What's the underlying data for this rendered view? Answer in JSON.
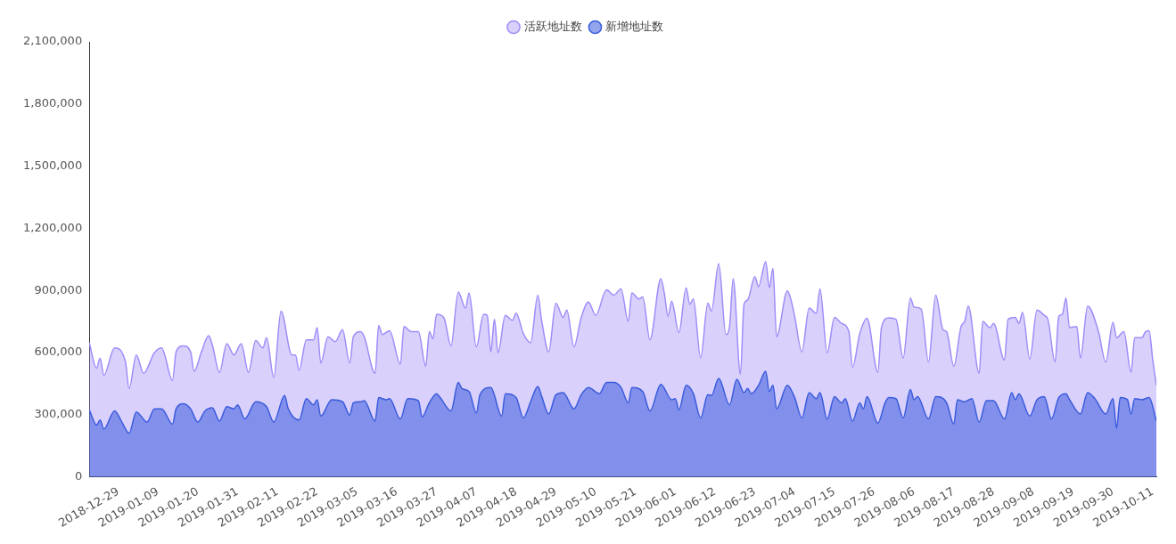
{
  "chart_data": {
    "type": "area",
    "legend": "top",
    "marker": "none",
    "xlim": [
      "2018-12-21",
      "2019-10-12"
    ],
    "ylim": [
      0,
      2100000
    ],
    "yticks": [
      0,
      {
        "value": 300000,
        "label": "300,000"
      },
      {
        "value": 600000,
        "label": "600,000"
      },
      {
        "value": 900000,
        "label": "900,000"
      },
      {
        "value": 1200000,
        "label": "1,200,000"
      },
      {
        "value": 1500000,
        "label": "1,500,000"
      },
      {
        "value": 1800000,
        "label": "1,800,000"
      },
      {
        "value": 2100000,
        "label": "2,100,000"
      }
    ],
    "xticks": [
      "2018-12-29",
      "2019-01-09",
      "2019-01-20",
      "2019-01-31",
      "2019-02-11",
      "2019-02-22",
      "2019-03-05",
      "2019-03-16",
      "2019-03-27",
      "2019-04-07",
      "2019-04-18",
      "2019-04-29",
      "2019-05-10",
      "2019-05-21",
      "2019-06-01",
      "2019-06-12",
      "2019-06-23",
      "2019-07-04",
      "2019-07-15",
      "2019-07-26",
      "2019-08-06",
      "2019-08-17",
      "2019-08-28",
      "2019-09-08",
      "2019-09-19",
      "2019-09-30",
      "2019-10-11"
    ],
    "series": [
      {
        "name": "活跃地址数",
        "color": "#a08cf8",
        "x": [
          "2018-12-21",
          "2018-12-23",
          "2018-12-24",
          "2018-12-25",
          "2018-12-28",
          "2018-12-31",
          "2019-01-01",
          "2019-01-03",
          "2019-01-05",
          "2019-01-08",
          "2019-01-10",
          "2019-01-13",
          "2019-01-14",
          "2019-01-16",
          "2019-01-18",
          "2019-01-19",
          "2019-01-21",
          "2019-01-23",
          "2019-01-24",
          "2019-01-26",
          "2019-01-28",
          "2019-01-30",
          "2019-02-01",
          "2019-02-03",
          "2019-02-05",
          "2019-02-07",
          "2019-02-08",
          "2019-02-10",
          "2019-02-12",
          "2019-02-15",
          "2019-02-16",
          "2019-02-17",
          "2019-02-19",
          "2019-02-21",
          "2019-02-22",
          "2019-02-23",
          "2019-02-25",
          "2019-02-27",
          "2019-03-01",
          "2019-03-03",
          "2019-03-04",
          "2019-03-06",
          "2019-03-07",
          "2019-03-10",
          "2019-03-11",
          "2019-03-12",
          "2019-03-14",
          "2019-03-17",
          "2019-03-18",
          "2019-03-20",
          "2019-03-22",
          "2019-03-24",
          "2019-03-25",
          "2019-03-26",
          "2019-03-27",
          "2019-03-29",
          "2019-03-31",
          "2019-04-02",
          "2019-04-04",
          "2019-04-05",
          "2019-04-07",
          "2019-04-09",
          "2019-04-10",
          "2019-04-11",
          "2019-04-12",
          "2019-04-13",
          "2019-04-15",
          "2019-04-17",
          "2019-04-18",
          "2019-04-20",
          "2019-04-22",
          "2019-04-24",
          "2019-04-25",
          "2019-04-27",
          "2019-04-29",
          "2019-05-01",
          "2019-05-02",
          "2019-05-04",
          "2019-05-06",
          "2019-05-08",
          "2019-05-10",
          "2019-05-13",
          "2019-05-15",
          "2019-05-17",
          "2019-05-19",
          "2019-05-20",
          "2019-05-22",
          "2019-05-23",
          "2019-05-25",
          "2019-05-28",
          "2019-05-29",
          "2019-05-30",
          "2019-05-31",
          "2019-06-02",
          "2019-06-04",
          "2019-06-05",
          "2019-06-06",
          "2019-06-08",
          "2019-06-10",
          "2019-06-11",
          "2019-06-13",
          "2019-06-15",
          "2019-06-16",
          "2019-06-17",
          "2019-06-19",
          "2019-06-20",
          "2019-06-21",
          "2019-06-23",
          "2019-06-24",
          "2019-06-26",
          "2019-06-27",
          "2019-06-28",
          "2019-06-29",
          "2019-07-02",
          "2019-07-03",
          "2019-07-04",
          "2019-07-06",
          "2019-07-08",
          "2019-07-10",
          "2019-07-11",
          "2019-07-13",
          "2019-07-15",
          "2019-07-17",
          "2019-07-19",
          "2019-07-20",
          "2019-07-22",
          "2019-07-24",
          "2019-07-27",
          "2019-07-28",
          "2019-07-30",
          "2019-08-01",
          "2019-08-03",
          "2019-08-05",
          "2019-08-06",
          "2019-08-08",
          "2019-08-10",
          "2019-08-12",
          "2019-08-14",
          "2019-08-15",
          "2019-08-17",
          "2019-08-19",
          "2019-08-20",
          "2019-08-21",
          "2019-08-24",
          "2019-08-25",
          "2019-08-27",
          "2019-08-28",
          "2019-08-31",
          "2019-09-01",
          "2019-09-03",
          "2019-09-04",
          "2019-09-05",
          "2019-09-07",
          "2019-09-09",
          "2019-09-11",
          "2019-09-12",
          "2019-09-14",
          "2019-09-15",
          "2019-09-16",
          "2019-09-17",
          "2019-09-18",
          "2019-09-20",
          "2019-09-21",
          "2019-09-23",
          "2019-09-26",
          "2019-09-28",
          "2019-09-30",
          "2019-10-01",
          "2019-10-03",
          "2019-10-05",
          "2019-10-06",
          "2019-10-08",
          "2019-10-09",
          "2019-10-10",
          "2019-10-11",
          "2019-10-12"
        ],
        "values": [
          648000,
          525000,
          574000,
          491000,
          623000,
          555000,
          427000,
          589000,
          500000,
          599000,
          623000,
          466000,
          604000,
          633000,
          604000,
          510000,
          604000,
          682000,
          638000,
          505000,
          643000,
          589000,
          643000,
          505000,
          658000,
          623000,
          672000,
          481000,
          800000,
          589000,
          589000,
          515000,
          662000,
          662000,
          721000,
          550000,
          677000,
          653000,
          711000,
          550000,
          677000,
          701000,
          677000,
          500000,
          731000,
          687000,
          706000,
          545000,
          726000,
          701000,
          701000,
          535000,
          701000,
          667000,
          785000,
          770000,
          633000,
          893000,
          815000,
          888000,
          628000,
          785000,
          780000,
          604000,
          761000,
          599000,
          780000,
          756000,
          790000,
          692000,
          648000,
          878000,
          761000,
          604000,
          839000,
          770000,
          805000,
          628000,
          770000,
          844000,
          780000,
          903000,
          878000,
          908000,
          751000,
          888000,
          859000,
          869000,
          662000,
          957000,
          883000,
          775000,
          849000,
          697000,
          913000,
          834000,
          859000,
          574000,
          839000,
          800000,
          1030000,
          687000,
          726000,
          957000,
          496000,
          834000,
          854000,
          967000,
          918000,
          1040000,
          913000,
          1006000,
          677000,
          898000,
          854000,
          775000,
          604000,
          815000,
          790000,
          908000,
          599000,
          770000,
          741000,
          701000,
          530000,
          692000,
          766000,
          505000,
          721000,
          768000,
          761000,
          574000,
          864000,
          820000,
          810000,
          555000,
          878000,
          711000,
          701000,
          535000,
          726000,
          751000,
          825000,
          500000,
          751000,
          721000,
          741000,
          564000,
          761000,
          770000,
          741000,
          795000,
          569000,
          805000,
          780000,
          761000,
          555000,
          775000,
          785000,
          864000,
          721000,
          726000,
          574000,
          825000,
          701000,
          555000,
          746000,
          672000,
          701000,
          505000,
          672000,
          672000,
          701000,
          706000,
          564000,
          442000
        ]
      },
      {
        "name": "新增地址数",
        "color": "#3a5bdc",
        "x": [
          "2018-12-21",
          "2018-12-23",
          "2018-12-24",
          "2018-12-25",
          "2018-12-28",
          "2018-12-30",
          "2019-01-01",
          "2019-01-03",
          "2019-01-06",
          "2019-01-08",
          "2019-01-10",
          "2019-01-13",
          "2019-01-14",
          "2019-01-16",
          "2019-01-18",
          "2019-01-20",
          "2019-01-22",
          "2019-01-24",
          "2019-01-26",
          "2019-01-28",
          "2019-01-30",
          "2019-01-31",
          "2019-02-02",
          "2019-02-05",
          "2019-02-08",
          "2019-02-10",
          "2019-02-13",
          "2019-02-14",
          "2019-02-17",
          "2019-02-19",
          "2019-02-21",
          "2019-02-22",
          "2019-02-23",
          "2019-02-26",
          "2019-03-01",
          "2019-03-03",
          "2019-03-04",
          "2019-03-06",
          "2019-03-07",
          "2019-03-10",
          "2019-03-11",
          "2019-03-13",
          "2019-03-14",
          "2019-03-17",
          "2019-03-19",
          "2019-03-22",
          "2019-03-23",
          "2019-03-25",
          "2019-03-27",
          "2019-03-28",
          "2019-03-31",
          "2019-04-02",
          "2019-04-03",
          "2019-04-05",
          "2019-04-07",
          "2019-04-08",
          "2019-04-11",
          "2019-04-14",
          "2019-04-15",
          "2019-04-18",
          "2019-04-20",
          "2019-04-22",
          "2019-04-24",
          "2019-04-25",
          "2019-04-27",
          "2019-04-29",
          "2019-05-01",
          "2019-05-04",
          "2019-05-06",
          "2019-05-08",
          "2019-05-11",
          "2019-05-13",
          "2019-05-15",
          "2019-05-17",
          "2019-05-19",
          "2019-05-20",
          "2019-05-23",
          "2019-05-25",
          "2019-05-28",
          "2019-05-31",
          "2019-06-01",
          "2019-06-02",
          "2019-06-04",
          "2019-06-06",
          "2019-06-08",
          "2019-06-10",
          "2019-06-11",
          "2019-06-13",
          "2019-06-16",
          "2019-06-18",
          "2019-06-20",
          "2019-06-21",
          "2019-06-22",
          "2019-06-24",
          "2019-06-26",
          "2019-06-27",
          "2019-06-28",
          "2019-06-29",
          "2019-07-02",
          "2019-07-04",
          "2019-07-06",
          "2019-07-08",
          "2019-07-10",
          "2019-07-11",
          "2019-07-13",
          "2019-07-15",
          "2019-07-17",
          "2019-07-18",
          "2019-07-20",
          "2019-07-22",
          "2019-07-23",
          "2019-07-24",
          "2019-07-27",
          "2019-07-29",
          "2019-07-30",
          "2019-08-01",
          "2019-08-03",
          "2019-08-05",
          "2019-08-06",
          "2019-08-07",
          "2019-08-10",
          "2019-08-12",
          "2019-08-15",
          "2019-08-17",
          "2019-08-18",
          "2019-08-20",
          "2019-08-22",
          "2019-08-24",
          "2019-08-26",
          "2019-08-28",
          "2019-08-31",
          "2019-09-02",
          "2019-09-03",
          "2019-09-04",
          "2019-09-07",
          "2019-09-09",
          "2019-09-11",
          "2019-09-13",
          "2019-09-15",
          "2019-09-17",
          "2019-09-18",
          "2019-09-21",
          "2019-09-23",
          "2019-09-25",
          "2019-09-28",
          "2019-09-30",
          "2019-10-01",
          "2019-10-02",
          "2019-10-04",
          "2019-10-05",
          "2019-10-06",
          "2019-10-08",
          "2019-10-10",
          "2019-10-12"
        ],
        "values": [
          324000,
          250000,
          275000,
          231000,
          319000,
          265000,
          211000,
          314000,
          265000,
          329000,
          329000,
          255000,
          329000,
          353000,
          329000,
          265000,
          319000,
          334000,
          270000,
          339000,
          329000,
          348000,
          280000,
          363000,
          339000,
          265000,
          393000,
          329000,
          275000,
          378000,
          348000,
          373000,
          294000,
          373000,
          363000,
          299000,
          358000,
          363000,
          368000,
          270000,
          383000,
          373000,
          378000,
          280000,
          378000,
          368000,
          290000,
          358000,
          402000,
          383000,
          319000,
          456000,
          427000,
          412000,
          309000,
          397000,
          432000,
          294000,
          402000,
          383000,
          285000,
          363000,
          437000,
          393000,
          304000,
          397000,
          407000,
          329000,
          397000,
          432000,
          402000,
          456000,
          456000,
          432000,
          358000,
          432000,
          412000,
          319000,
          447000,
          373000,
          378000,
          324000,
          442000,
          402000,
          285000,
          397000,
          393000,
          476000,
          348000,
          471000,
          407000,
          427000,
          402000,
          442000,
          510000,
          412000,
          442000,
          329000,
          442000,
          383000,
          285000,
          407000,
          378000,
          407000,
          280000,
          388000,
          358000,
          378000,
          270000,
          358000,
          329000,
          388000,
          260000,
          358000,
          383000,
          378000,
          285000,
          422000,
          373000,
          388000,
          280000,
          388000,
          358000,
          255000,
          373000,
          363000,
          378000,
          265000,
          368000,
          368000,
          280000,
          407000,
          373000,
          402000,
          294000,
          373000,
          388000,
          280000,
          383000,
          402000,
          373000,
          304000,
          407000,
          378000,
          304000,
          378000,
          236000,
          383000,
          373000,
          304000,
          378000,
          373000,
          383000,
          270000
        ]
      }
    ]
  }
}
